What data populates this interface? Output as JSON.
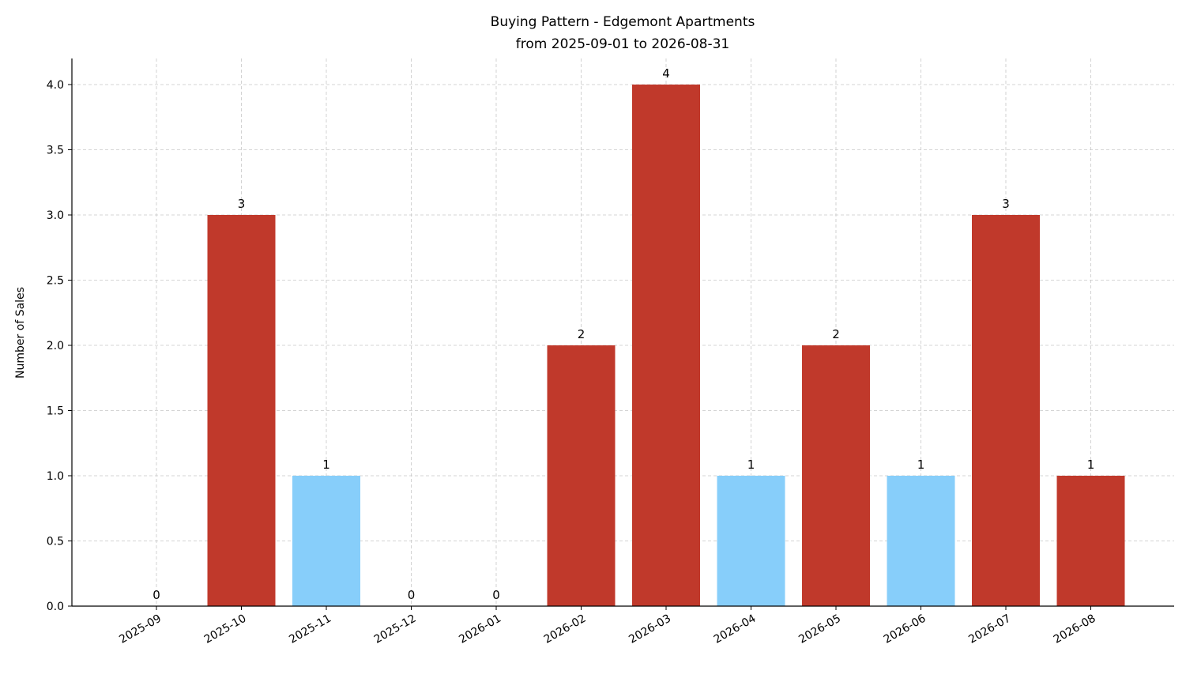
{
  "chart_data": {
    "type": "bar",
    "title": "Buying Pattern - Edgemont Apartments",
    "subtitle": "from 2025-09-01 to 2026-08-31",
    "xlabel": "",
    "ylabel": "Number of Sales",
    "categories": [
      "2025-09",
      "2025-10",
      "2025-11",
      "2025-12",
      "2026-01",
      "2026-02",
      "2026-03",
      "2026-04",
      "2026-05",
      "2026-06",
      "2026-07",
      "2026-08"
    ],
    "values": [
      0,
      3,
      1,
      0,
      0,
      2,
      4,
      1,
      2,
      1,
      3,
      1
    ],
    "bar_colors": [
      "#c0392b",
      "#c0392b",
      "#87cefa",
      "#c0392b",
      "#c0392b",
      "#c0392b",
      "#c0392b",
      "#87cefa",
      "#c0392b",
      "#87cefa",
      "#c0392b",
      "#c0392b"
    ],
    "data_labels": [
      "0",
      "3",
      "1",
      "0",
      "0",
      "2",
      "4",
      "1",
      "2",
      "1",
      "3",
      "1"
    ],
    "ylim": [
      0,
      4.2
    ],
    "yticks": [
      "0.0",
      "0.5",
      "1.0",
      "1.5",
      "2.0",
      "2.5",
      "3.0",
      "3.5",
      "4.0"
    ],
    "ytick_values": [
      0,
      0.5,
      1.0,
      1.5,
      2.0,
      2.5,
      3.0,
      3.5,
      4.0
    ],
    "grid": true,
    "legend": "none"
  }
}
